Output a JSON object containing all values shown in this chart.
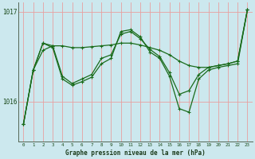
{
  "bg_color": "#cce8ee",
  "grid_v_color": "#e8a0a0",
  "grid_h_color": "#e8a0a0",
  "line_color": "#1a6b1a",
  "xlabel": "Graphe pression niveau de la mer (hPa)",
  "xlim": [
    -0.5,
    23.5
  ],
  "ylim": [
    1015.55,
    1017.1
  ],
  "yticks": [
    1016,
    1017
  ],
  "xticks": [
    0,
    1,
    2,
    3,
    4,
    5,
    6,
    7,
    8,
    9,
    10,
    11,
    12,
    13,
    14,
    15,
    16,
    17,
    18,
    19,
    20,
    21,
    22,
    23
  ],
  "y_main": [
    1015.75,
    1016.35,
    1016.65,
    1016.6,
    1016.25,
    1016.18,
    1016.22,
    1016.27,
    1016.42,
    1016.48,
    1016.78,
    1016.8,
    1016.72,
    1016.55,
    1016.48,
    1016.28,
    1015.92,
    1015.88,
    1016.25,
    1016.35,
    1016.38,
    1016.4,
    1016.42,
    1017.02
  ],
  "y_smooth": [
    1015.75,
    1016.35,
    1016.57,
    1016.62,
    1016.62,
    1016.6,
    1016.6,
    1016.61,
    1016.62,
    1016.63,
    1016.65,
    1016.65,
    1016.63,
    1016.6,
    1016.57,
    1016.52,
    1016.45,
    1016.4,
    1016.38,
    1016.38,
    1016.4,
    1016.42,
    1016.45,
    1017.02
  ],
  "y_cross": [
    1015.75,
    1016.35,
    1016.65,
    1016.62,
    1016.28,
    1016.2,
    1016.25,
    1016.3,
    1016.48,
    1016.52,
    1016.75,
    1016.78,
    1016.7,
    1016.58,
    1016.5,
    1016.32,
    1016.08,
    1016.12,
    1016.3,
    1016.38,
    1016.4,
    1016.42,
    1016.45,
    1017.02
  ]
}
